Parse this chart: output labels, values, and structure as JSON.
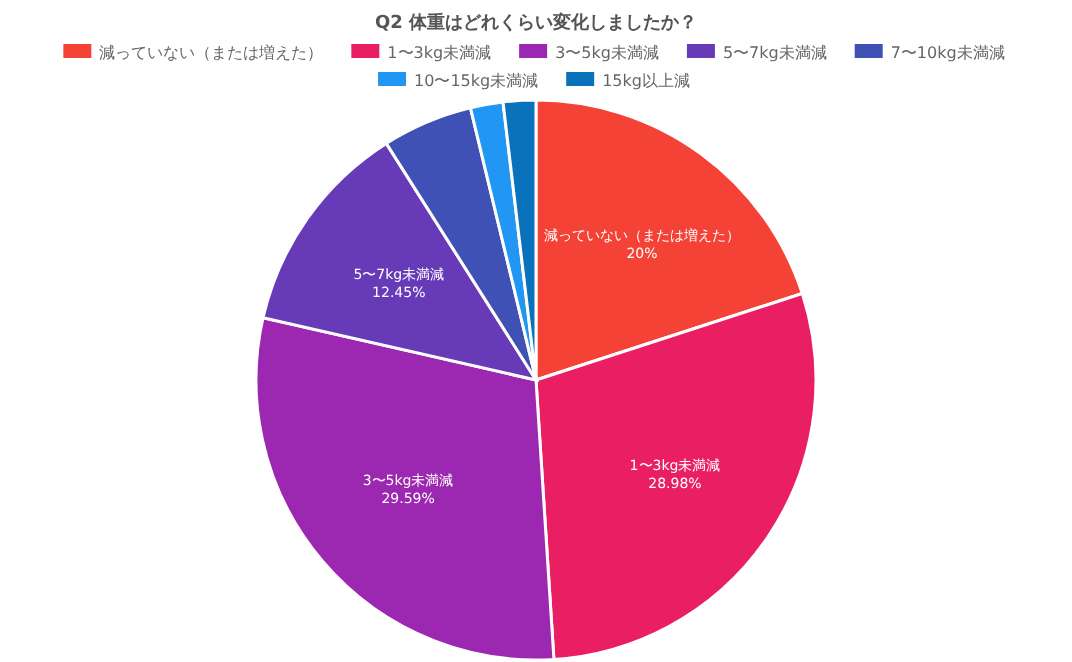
{
  "chart_data": {
    "type": "pie",
    "title": "Q2 体重はどれくらい変化しましたか？",
    "categories": [
      "減っていない（または増えた）",
      "1〜3kg未満減",
      "3〜5kg未満減",
      "5〜7kg未満減",
      "7〜10kg未満減",
      "10〜15kg未満減",
      "15kg以上減"
    ],
    "values": [
      20,
      28.98,
      29.59,
      12.45,
      5.22,
      1.88,
      1.88
    ],
    "value_labels": [
      "20%",
      "28.98%",
      "29.59%",
      "12.45%",
      null,
      null,
      null
    ],
    "colors": [
      "#f44336",
      "#e91e63",
      "#9c27b0",
      "#673ab7",
      "#3f51b5",
      "#2196f3",
      "#0a72ba"
    ],
    "legend": "top"
  }
}
